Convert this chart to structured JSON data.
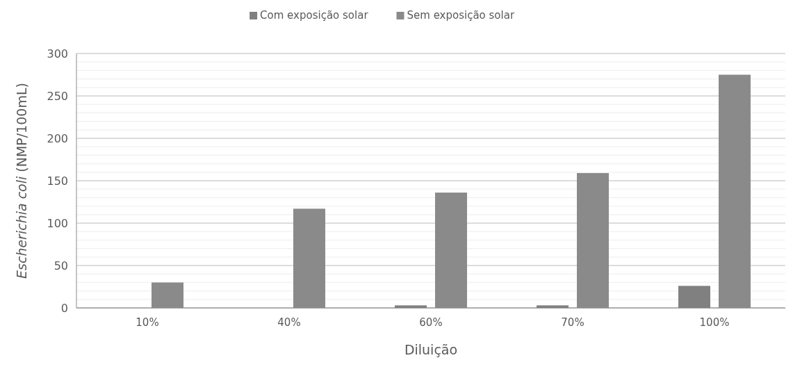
{
  "chart_data": {
    "type": "bar",
    "xlabel": "Diluição",
    "ylabel": "Escherichia coli  (NMP/100mL)",
    "categories": [
      "10%",
      "40%",
      "60%",
      "70%",
      "100%"
    ],
    "series": [
      {
        "name": "Com exposição solar",
        "color": "#808080",
        "values": [
          0,
          0,
          3,
          3,
          26
        ]
      },
      {
        "name": "Sem exposição solar",
        "color": "#8a8a8a",
        "values": [
          30,
          117,
          136,
          159,
          275
        ]
      }
    ],
    "ylim": [
      0,
      300
    ],
    "yticks": [
      0,
      {
        "value": 10,
        "label": null
      },
      {
        "value": 20,
        "label": null
      },
      {
        "value": 30,
        "label": null
      },
      {
        "value": 40,
        "label": null
      },
      50,
      {
        "value": 60,
        "label": null
      },
      {
        "value": 70,
        "label": null
      },
      {
        "value": 80,
        "label": null
      },
      {
        "value": 90,
        "label": null
      },
      100,
      {
        "value": 110,
        "label": null
      },
      {
        "value": 120,
        "label": null
      },
      {
        "value": 130,
        "label": null
      },
      {
        "value": 140,
        "label": null
      },
      150,
      {
        "value": 160,
        "label": null
      },
      {
        "value": 170,
        "label": null
      },
      {
        "value": 180,
        "label": null
      },
      {
        "value": 190,
        "label": null
      },
      200,
      {
        "value": 210,
        "label": null
      },
      {
        "value": 220,
        "label": null
      },
      {
        "value": 230,
        "label": null
      },
      {
        "value": 240,
        "label": null
      },
      250,
      {
        "value": 260,
        "label": null
      },
      {
        "value": 270,
        "label": null
      },
      {
        "value": 280,
        "label": null
      },
      {
        "value": 290,
        "label": null
      },
      300
    ],
    "grid": true,
    "legend": "top"
  }
}
